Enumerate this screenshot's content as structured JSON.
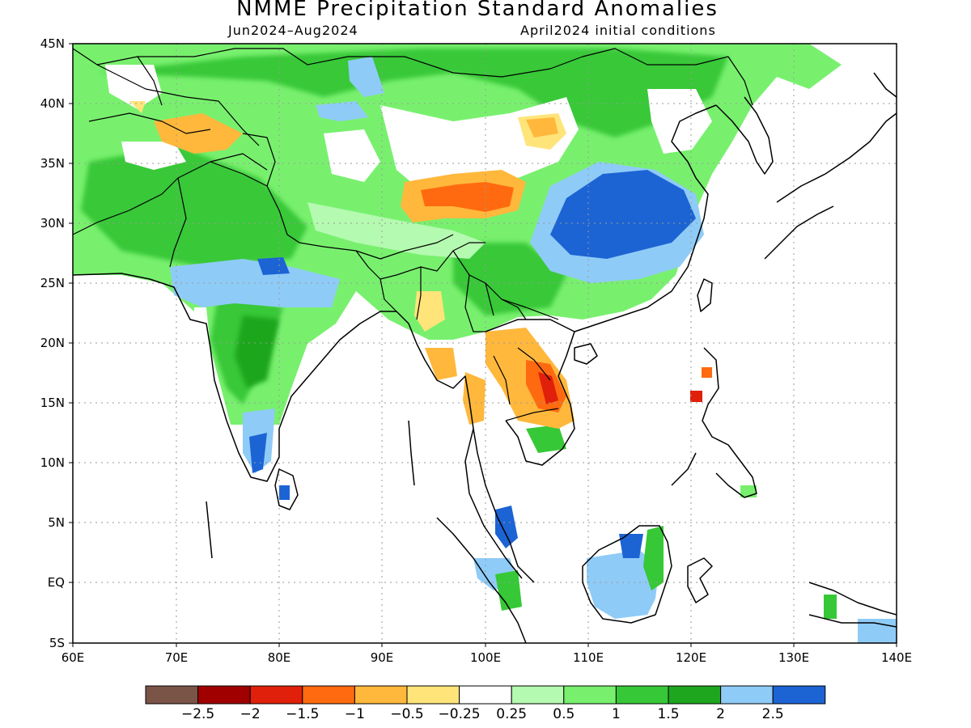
{
  "title": "NMME Precipitation Standard Anomalies",
  "period": "Jun2024–Aug2024",
  "initial_conditions": "April2024 initial conditions",
  "map": {
    "lon_range": [
      60,
      140
    ],
    "lat_range": [
      -5,
      45
    ],
    "lat_labels": [
      "45N",
      "40N",
      "35N",
      "30N",
      "25N",
      "20N",
      "15N",
      "10N",
      "5N",
      "EQ",
      "5S"
    ],
    "lon_labels": [
      "60E",
      "70E",
      "80E",
      "90E",
      "100E",
      "110E",
      "120E",
      "130E",
      "140E"
    ]
  },
  "legend": {
    "colors": [
      "#7b5448",
      "#a00000",
      "#e0200a",
      "#ff6a10",
      "#ffb83c",
      "#ffe47a",
      "#ffffff",
      "#b4fab0",
      "#78f06e",
      "#37c837",
      "#1ea61e",
      "#8fcbf7",
      "#1c64d4"
    ],
    "labels": [
      "−2.5",
      "−2",
      "−1.5",
      "−1",
      "−0.5",
      "−0.25",
      "0.25",
      "0.5",
      "1",
      "1.5",
      "2",
      "2.5"
    ]
  }
}
